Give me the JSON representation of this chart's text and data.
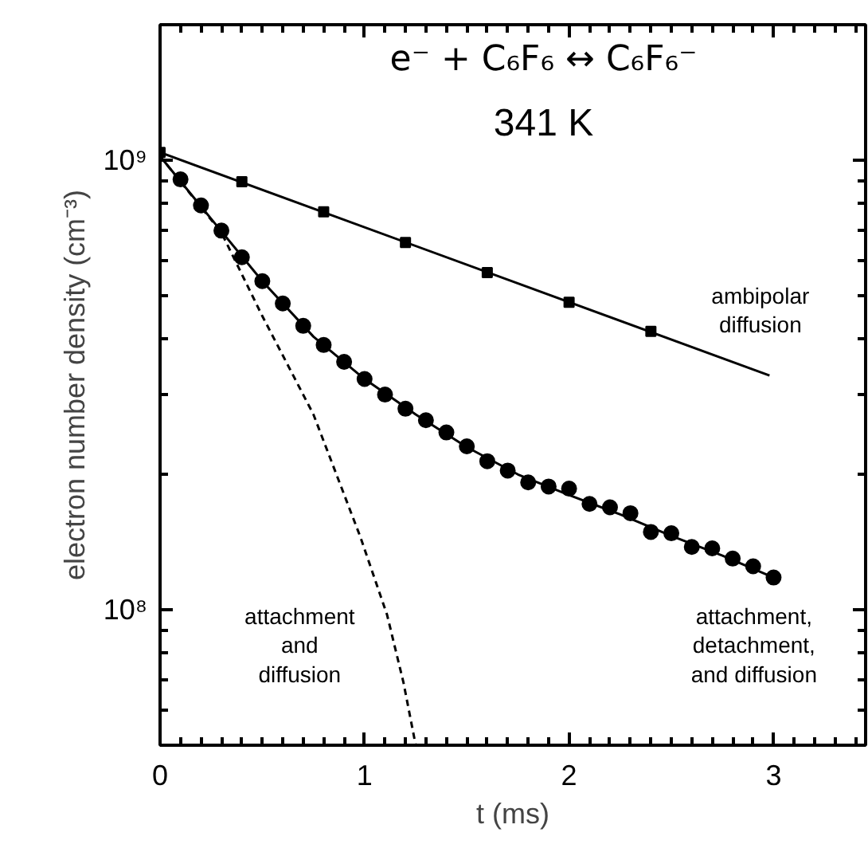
{
  "chart_data": {
    "type": "scatter",
    "title": "e⁻ + C₆F₆ ↔ C₆F₆⁻",
    "subtitle": "341 K",
    "xlabel": "t (ms)",
    "ylabel": "electron number density (cm⁻³)",
    "log": "y",
    "grid": false,
    "xlim": [
      0,
      3.45
    ],
    "ylim": [
      50000000.0,
      2000000000.0
    ],
    "xticks": [
      0,
      1,
      2,
      3
    ],
    "yticks": [
      {
        "value": 100000000.0,
        "label": "10⁸"
      },
      {
        "value": 1000000000.0,
        "label": "10⁹"
      }
    ],
    "series": [
      {
        "type": "line",
        "color": "#000000",
        "line_style": "solid",
        "marker": "none",
        "x": [
          0,
          2.98
        ],
        "values": [
          1040000000.0,
          332000000.0
        ]
      },
      {
        "color": "#000000",
        "marker": "square",
        "x": [
          0,
          0.4,
          0.8,
          1.2,
          1.6,
          2.0,
          2.4
        ],
        "values": [
          1040000000.0,
          895000000.0,
          767000000.0,
          656000000.0,
          562000000.0,
          483000000.0,
          416000000.0
        ]
      },
      {
        "color": "#000000",
        "marker": "circle",
        "x": [
          0.1,
          0.2,
          0.3,
          0.4,
          0.5,
          0.6,
          0.7,
          0.8,
          0.9,
          1.0,
          1.1,
          1.2,
          1.3,
          1.4,
          1.5,
          1.6,
          1.7,
          1.8,
          1.9,
          2.0,
          2.1,
          2.2,
          2.3,
          2.4,
          2.5,
          2.6,
          2.7,
          2.8,
          2.9,
          3.0
        ],
        "values": [
          906000000.0,
          793000000.0,
          697000000.0,
          608000000.0,
          538000000.0,
          480000000.0,
          428000000.0,
          388000000.0,
          356000000.0,
          326000000.0,
          301000000.0,
          280000000.0,
          264000000.0,
          248000000.0,
          231000000.0,
          214000000.0,
          204000000.0,
          192000000.0,
          188000000.0,
          186000000.0,
          172000000.0,
          169000000.0,
          164000000.0,
          149000000.0,
          148000000.0,
          138000000.0,
          137000000.0,
          130000000.0,
          125000000.0,
          118000000.0
        ]
      },
      {
        "type": "line",
        "color": "#000000",
        "line_style": "solid",
        "marker": "none",
        "x": [
          0,
          0.25,
          0.5,
          0.75,
          1.0,
          1.25,
          1.5,
          1.75,
          2.0,
          2.25,
          2.5,
          2.75,
          3.0
        ],
        "values": [
          1020000000.0,
          740000000.0,
          538000000.0,
          405000000.0,
          326000000.0,
          272000000.0,
          230000000.0,
          200000000.0,
          180000000.0,
          163000000.0,
          146000000.0,
          132000000.0,
          118000000.0
        ]
      },
      {
        "type": "line",
        "color": "#000000",
        "line_style": "dashed",
        "marker": "none",
        "x": [
          0,
          0.3,
          0.5,
          0.75,
          0.98,
          1.11,
          1.19,
          1.25
        ],
        "values": [
          1020000000.0,
          690000000.0,
          450000000.0,
          272000000.0,
          145000000.0,
          97500000.0,
          69000000.0,
          50000000.0
        ]
      }
    ],
    "annotations": [
      "ambipolar\ndiffusion",
      "attachment\nand\ndiffusion",
      "attachment,\ndetachment,\nand diffusion"
    ]
  }
}
